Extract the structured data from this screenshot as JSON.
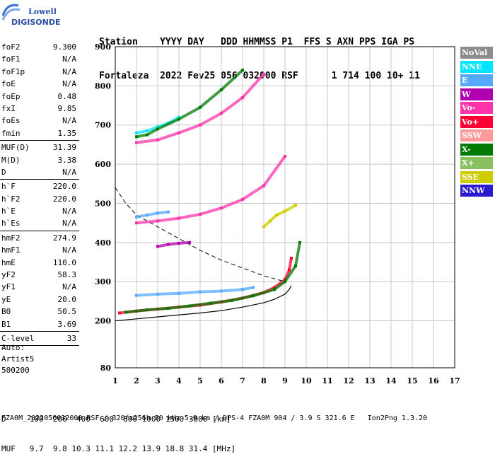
{
  "logo": {
    "line1": "Lowell",
    "line2": "DIGISONDE"
  },
  "header": {
    "line1": "Station    YYYY DAY   DDD HHMMSS P1  FFS S AXN PPS IGA PS",
    "line2": "Fortaleza  2022 Fev25 056 032000 RSF      1 714 100 10+ 11"
  },
  "params": [
    {
      "label": "foF2",
      "value": "9.300"
    },
    {
      "label": "foF1",
      "value": "N/A"
    },
    {
      "label": "foF1p",
      "value": "N/A"
    },
    {
      "label": "foE",
      "value": "N/A"
    },
    {
      "label": "foEp",
      "value": "0.48"
    },
    {
      "label": "fxI",
      "value": "9.85"
    },
    {
      "label": "foEs",
      "value": "N/A"
    },
    {
      "label": "fmin",
      "value": "1.35"
    },
    {
      "sep": true
    },
    {
      "label": "MUF(D)",
      "value": "31.39"
    },
    {
      "label": "M(D)",
      "value": "3.38"
    },
    {
      "label": "D",
      "value": "N/A"
    },
    {
      "sep": true
    },
    {
      "label": "h`F",
      "value": "220.0"
    },
    {
      "label": "h`F2",
      "value": "220.0"
    },
    {
      "label": "h`E",
      "value": "N/A"
    },
    {
      "label": "h`Es",
      "value": "N/A"
    },
    {
      "sep": true
    },
    {
      "label": "hmF2",
      "value": "274.9"
    },
    {
      "label": "hmF1",
      "value": "N/A"
    },
    {
      "label": "hmE",
      "value": "110.0"
    },
    {
      "label": "yF2",
      "value": "58.3"
    },
    {
      "label": "yF1",
      "value": "N/A"
    },
    {
      "label": "yE",
      "value": "20.0"
    },
    {
      "label": "B0",
      "value": "50.5"
    },
    {
      "label": "B1",
      "value": "3.69"
    },
    {
      "sep": true
    },
    {
      "label": "C-level",
      "value": "33"
    },
    {
      "sep": true
    }
  ],
  "auto": {
    "line1": "Auto:",
    "line2": "Artist5",
    "line3": "500200"
  },
  "legend": [
    {
      "label": "NoVal",
      "color": "#8c8c8c",
      "text": "#ffffff"
    },
    {
      "label": "NNE",
      "color": "#00e5ff",
      "text": "#ffffff"
    },
    {
      "label": "E",
      "color": "#55aaff",
      "text": "#ffffff"
    },
    {
      "label": "W",
      "color": "#b000b0",
      "text": "#ffffff"
    },
    {
      "label": "Vo-",
      "color": "#ff33aa",
      "text": "#ffffff"
    },
    {
      "label": "Vo+",
      "color": "#ff0033",
      "text": "#ffffff"
    },
    {
      "label": "SSW",
      "color": "#ff9a9a",
      "text": "#ffffff"
    },
    {
      "label": "X-",
      "color": "#007a00",
      "text": "#ffffff"
    },
    {
      "label": "X+",
      "color": "#88c060",
      "text": "#ffffff"
    },
    {
      "label": "SSE",
      "color": "#cccc00",
      "text": "#ffffff"
    },
    {
      "label": "NNW",
      "color": "#2a1ad0",
      "text": "#ffffff"
    }
  ],
  "bottom": {
    "dline": "D     100  200  400  600  800 1000 1500 3000 [km]",
    "mufline": "MUF   9.7  9.8 10.3 11.1 12.2 13.9 18.8 31.4 [MHz]"
  },
  "footer": "FZA0M_2022056032000.RSF / 320fx256h 50 kHz 5.0 km / DPS-4 FZA0M 904 / 3.9 S 321.6 E   Ion2Png 1.3.20",
  "chart_data": {
    "type": "scatter",
    "title": "",
    "xlabel": "",
    "ylabel": "",
    "xlim": [
      1,
      17
    ],
    "ylim": [
      80,
      900
    ],
    "xticks": [
      1,
      2,
      3,
      4,
      5,
      6,
      7,
      8,
      9,
      10,
      11,
      12,
      13,
      14,
      15,
      16,
      17
    ],
    "yticks": [
      80,
      200,
      300,
      400,
      500,
      600,
      700,
      800,
      900
    ],
    "grid": true,
    "series": [
      {
        "name": "E",
        "color": "#55aaff",
        "x": [
          2.0,
          3.0,
          4.0,
          5.0,
          6.0,
          7.0,
          7.5
        ],
        "y": [
          265,
          268,
          270,
          274,
          276,
          280,
          285
        ]
      },
      {
        "name": "Vo+",
        "color": "#ff0033",
        "x": [
          1.2,
          2.0,
          3.0,
          4.0,
          5.0,
          6.0,
          7.0,
          8.0,
          8.5,
          9.0,
          9.2,
          9.3
        ],
        "y": [
          220,
          225,
          230,
          235,
          240,
          248,
          258,
          272,
          285,
          305,
          330,
          360
        ]
      },
      {
        "name": "X-",
        "color": "#007a00",
        "x": [
          1.5,
          2.5,
          3.5,
          4.5,
          5.5,
          6.5,
          7.5,
          8.5,
          9.0,
          9.5,
          9.7
        ],
        "y": [
          222,
          228,
          232,
          238,
          245,
          252,
          264,
          280,
          300,
          340,
          400
        ]
      },
      {
        "name": "Vo-",
        "color": "#ff33aa",
        "x": [
          2.0,
          3.0,
          4.0,
          5.0,
          6.0,
          7.0,
          8.0,
          9.0
        ],
        "y": [
          450,
          455,
          462,
          472,
          488,
          510,
          545,
          620
        ]
      },
      {
        "name": "E",
        "color": "#55aaff",
        "x": [
          2.0,
          2.5,
          3.0,
          3.5
        ],
        "y": [
          465,
          470,
          475,
          478
        ]
      },
      {
        "name": "Vo-",
        "color": "#ff33aa",
        "x": [
          2.0,
          3.0,
          4.0,
          5.0,
          6.0,
          7.0,
          8.0
        ],
        "y": [
          655,
          662,
          680,
          700,
          730,
          770,
          830
        ]
      },
      {
        "name": "NNE",
        "color": "#00e5ff",
        "x": [
          2.0,
          2.5,
          3.0,
          3.5,
          4.0
        ],
        "y": [
          680,
          685,
          695,
          705,
          720
        ]
      },
      {
        "name": "X-",
        "color": "#007a00",
        "x": [
          2.0,
          2.5,
          3.0,
          4.0,
          5.0,
          6.0,
          7.0
        ],
        "y": [
          670,
          675,
          690,
          715,
          745,
          790,
          840
        ]
      },
      {
        "name": "SSE",
        "color": "#cccc00",
        "x": [
          8.0,
          8.3,
          8.6,
          9.0,
          9.5
        ],
        "y": [
          440,
          455,
          470,
          480,
          495
        ]
      },
      {
        "name": "W",
        "color": "#b000b0",
        "x": [
          3.0,
          3.5,
          4.0,
          4.5
        ],
        "y": [
          390,
          395,
          398,
          400
        ]
      }
    ],
    "profile": {
      "x": [
        1.0,
        2.0,
        3.0,
        4.0,
        5.0,
        6.0,
        7.0,
        8.0,
        8.5,
        9.0,
        9.2,
        9.3
      ],
      "y": [
        200,
        205,
        210,
        215,
        220,
        226,
        235,
        246,
        255,
        268,
        280,
        290
      ]
    },
    "mufcurve": {
      "x": [
        1.0,
        1.5,
        2.0,
        3.0,
        4.0,
        5.0,
        6.0,
        7.0,
        8.0,
        9.0
      ],
      "y": [
        540,
        500,
        470,
        440,
        410,
        380,
        355,
        335,
        315,
        300
      ]
    }
  }
}
